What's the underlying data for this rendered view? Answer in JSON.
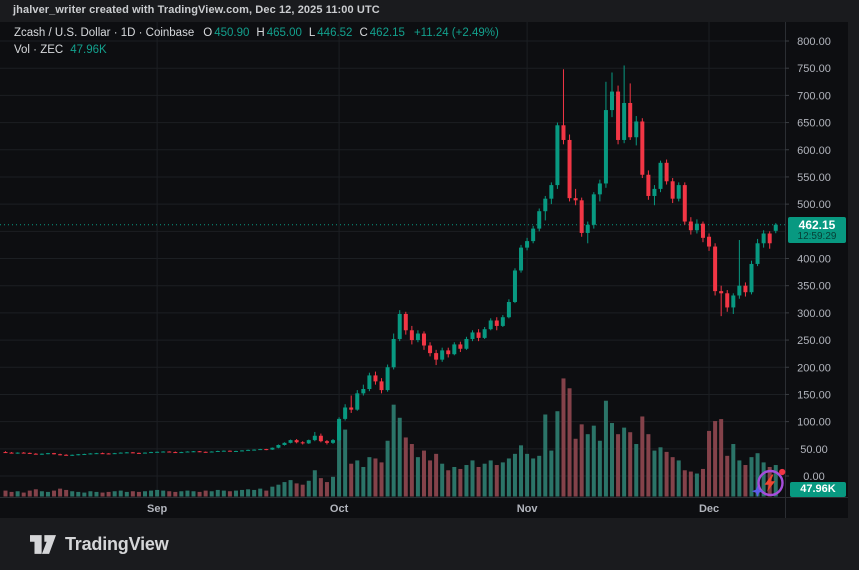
{
  "frame": {
    "attribution": "jhalver_writer created with TradingView.com, Dec 12, 2025 11:00 UTC",
    "brand": "TradingView"
  },
  "legend": {
    "title": "Zcash / U.S. Dollar · 1D · Coinbase",
    "ohlc": [
      {
        "k": "O",
        "v": "450.90"
      },
      {
        "k": "H",
        "v": "465.00"
      },
      {
        "k": "L",
        "v": "446.52"
      },
      {
        "k": "C",
        "v": "462.15"
      }
    ],
    "change": "+11.24 (+2.49%)",
    "volume_label": "Vol · ZEC",
    "volume_value": "47.96K"
  },
  "axes": {
    "price_badge": {
      "label": "462.15",
      "countdown": "12:59:29"
    },
    "volume_badge": "47.96K"
  },
  "colors": {
    "up": "#089981",
    "down": "#f23645",
    "vol_up": "#2b7468",
    "vol_down": "#84424a",
    "grid": "#1c1f23",
    "axis_border": "#2b2e33",
    "text_axis": "#b2b5bd",
    "text_primary": "#d7d9dc",
    "badge": "#089981",
    "bg_frame": "#1a1b1e",
    "bg_chart": "#0d0e11",
    "icon_ring": "#a64ddb",
    "icon_bolt": "#ee4630",
    "icon_star": "#5d5bea",
    "icon_dot": "#f23645"
  },
  "chart_data": {
    "type": "candlestick",
    "title": "Zcash / U.S. Dollar · 1D · Coinbase",
    "exchange": "Coinbase",
    "interval": "1D",
    "last_bar": {
      "open": 450.9,
      "high": 465.0,
      "low": 446.52,
      "close": 462.15,
      "change": "+11.24 (+2.49%)",
      "volume": "47.96K"
    },
    "current_price": {
      "value": 462.15,
      "label": "462.15",
      "countdown": "12:59:29"
    },
    "y_axis": {
      "min": 0,
      "max": 800,
      "step": 50,
      "ticks": [
        {
          "v": 800,
          "label": "800.00"
        },
        {
          "v": 750,
          "label": "750.00"
        },
        {
          "v": 700,
          "label": "700.00"
        },
        {
          "v": 650,
          "label": "650.00"
        },
        {
          "v": 600,
          "label": "600.00"
        },
        {
          "v": 550,
          "label": "550.00"
        },
        {
          "v": 500,
          "label": "500.00"
        },
        {
          "v": 400,
          "label": "400.00"
        },
        {
          "v": 350,
          "label": "350.00"
        },
        {
          "v": 300,
          "label": "300.00"
        },
        {
          "v": 250,
          "label": "250.00"
        },
        {
          "v": 200,
          "label": "200.00"
        },
        {
          "v": 150,
          "label": "150.00"
        },
        {
          "v": 100,
          "label": "100.00"
        },
        {
          "v": 50,
          "label": "50.00"
        },
        {
          "v": 0,
          "label": "0.00"
        }
      ]
    },
    "x_axis": {
      "months": [
        {
          "label": "Sep",
          "index": 25
        },
        {
          "label": "Oct",
          "index": 55
        },
        {
          "label": "Nov",
          "index": 86
        },
        {
          "label": "Dec",
          "index": 116
        }
      ]
    },
    "candles_format": [
      "open",
      "high",
      "low",
      "close",
      "volume_thousands"
    ],
    "candles": [
      [
        44,
        45.5,
        42.5,
        43,
        9
      ],
      [
        43,
        44,
        41.5,
        42,
        7
      ],
      [
        42,
        43.5,
        41,
        43,
        8
      ],
      [
        43,
        44,
        42,
        42.5,
        6
      ],
      [
        42.5,
        43,
        40.5,
        41,
        9
      ],
      [
        41,
        42,
        39.5,
        40,
        11
      ],
      [
        40,
        41.5,
        39,
        41,
        8
      ],
      [
        41,
        42.5,
        40,
        42,
        7
      ],
      [
        42,
        42.5,
        39.5,
        40,
        9
      ],
      [
        40,
        41,
        38,
        39,
        12
      ],
      [
        39,
        40,
        37.5,
        38,
        10
      ],
      [
        38,
        39.5,
        37,
        39,
        8
      ],
      [
        39,
        40.5,
        38,
        40,
        7
      ],
      [
        40,
        41,
        39,
        40.5,
        6
      ],
      [
        40.5,
        42,
        39.5,
        41.5,
        8
      ],
      [
        41.5,
        42.5,
        40.5,
        42,
        7
      ],
      [
        42,
        43,
        41,
        41.5,
        6
      ],
      [
        41.5,
        42,
        40,
        41,
        7
      ],
      [
        41,
        42.5,
        40.5,
        42,
        8
      ],
      [
        42,
        43.5,
        41.5,
        43,
        9
      ],
      [
        43,
        44,
        42,
        43.5,
        7
      ],
      [
        43.5,
        44,
        42,
        42.5,
        8
      ],
      [
        42.5,
        43,
        41,
        42,
        7
      ],
      [
        42,
        43.5,
        41.5,
        43,
        8
      ],
      [
        43,
        44.5,
        42.5,
        44,
        9
      ],
      [
        44,
        45,
        43,
        44.5,
        10
      ],
      [
        44.5,
        45.5,
        43.5,
        45,
        9
      ],
      [
        45,
        45.5,
        43.5,
        44,
        8
      ],
      [
        44,
        45,
        43,
        43.5,
        7
      ],
      [
        43.5,
        44.5,
        42.5,
        44,
        8
      ],
      [
        44,
        45.5,
        43.5,
        45,
        9
      ],
      [
        45,
        46,
        44,
        45.5,
        8
      ],
      [
        45.5,
        46,
        44,
        44.5,
        7
      ],
      [
        44.5,
        45,
        43,
        44,
        9
      ],
      [
        44,
        45.5,
        43.5,
        45,
        8
      ],
      [
        45,
        46.5,
        44.5,
        46,
        10
      ],
      [
        46,
        47,
        45,
        46.5,
        9
      ],
      [
        46.5,
        47,
        45,
        45.5,
        8
      ],
      [
        45.5,
        46.5,
        44.5,
        46,
        9
      ],
      [
        46,
        47.5,
        45.5,
        47,
        10
      ],
      [
        47,
        48.5,
        46.5,
        48,
        11
      ],
      [
        48,
        49,
        47,
        48.5,
        10
      ],
      [
        48.5,
        50,
        48,
        49.5,
        12
      ],
      [
        49.5,
        50,
        47.5,
        48.5,
        9
      ],
      [
        48.5,
        52.5,
        48,
        52,
        15
      ],
      [
        52,
        58,
        51,
        57,
        18
      ],
      [
        57,
        62,
        56,
        61,
        22
      ],
      [
        61,
        67,
        60,
        66,
        25
      ],
      [
        66,
        68,
        60,
        62,
        20
      ],
      [
        62,
        64,
        58,
        60,
        18
      ],
      [
        60,
        67,
        59,
        66,
        24
      ],
      [
        66,
        81,
        64,
        74,
        40
      ],
      [
        74,
        78,
        62,
        64,
        28
      ],
      [
        64,
        66,
        58,
        61,
        22
      ],
      [
        61,
        68,
        59,
        66,
        30
      ],
      [
        66,
        108,
        64,
        105,
        107
      ],
      [
        105,
        132,
        102,
        126,
        102
      ],
      [
        126,
        148,
        116,
        122,
        50
      ],
      [
        122,
        158,
        120,
        152,
        55
      ],
      [
        152,
        168,
        148,
        160,
        45
      ],
      [
        160,
        190,
        156,
        185,
        60
      ],
      [
        185,
        192,
        168,
        174,
        58
      ],
      [
        174,
        180,
        152,
        158,
        52
      ],
      [
        158,
        205,
        155,
        200,
        85
      ],
      [
        200,
        262,
        196,
        252,
        140
      ],
      [
        252,
        305,
        248,
        298,
        120
      ],
      [
        298,
        302,
        260,
        268,
        90
      ],
      [
        268,
        276,
        242,
        250,
        80
      ],
      [
        250,
        268,
        246,
        262,
        60
      ],
      [
        262,
        266,
        232,
        240,
        70
      ],
      [
        240,
        246,
        220,
        226,
        55
      ],
      [
        226,
        232,
        204,
        214,
        65
      ],
      [
        214,
        236,
        210,
        231,
        50
      ],
      [
        231,
        236,
        218,
        224,
        40
      ],
      [
        224,
        246,
        222,
        242,
        45
      ],
      [
        242,
        247,
        228,
        234,
        42
      ],
      [
        234,
        256,
        232,
        252,
        48
      ],
      [
        252,
        268,
        248,
        264,
        55
      ],
      [
        264,
        270,
        248,
        254,
        45
      ],
      [
        254,
        274,
        252,
        270,
        50
      ],
      [
        270,
        290,
        268,
        286,
        55
      ],
      [
        286,
        292,
        268,
        276,
        48
      ],
      [
        276,
        296,
        274,
        292,
        52
      ],
      [
        292,
        325,
        290,
        320,
        58
      ],
      [
        320,
        382,
        318,
        378,
        65
      ],
      [
        378,
        425,
        374,
        420,
        78
      ],
      [
        420,
        438,
        415,
        432,
        65
      ],
      [
        432,
        460,
        428,
        455,
        58
      ],
      [
        455,
        492,
        450,
        487,
        62
      ],
      [
        487,
        515,
        470,
        510,
        125
      ],
      [
        510,
        540,
        500,
        535,
        70
      ],
      [
        535,
        650,
        528,
        645,
        130
      ],
      [
        645,
        748,
        610,
        618,
        180
      ],
      [
        618,
        628,
        505,
        511,
        165
      ],
      [
        511,
        528,
        498,
        507,
        88
      ],
      [
        507,
        512,
        440,
        447,
        110
      ],
      [
        447,
        468,
        428,
        462,
        95
      ],
      [
        462,
        522,
        455,
        518,
        108
      ],
      [
        518,
        545,
        505,
        538,
        85
      ],
      [
        538,
        725,
        530,
        673,
        146
      ],
      [
        673,
        742,
        660,
        707,
        112
      ],
      [
        707,
        718,
        610,
        618,
        95
      ],
      [
        618,
        755,
        612,
        686,
        105
      ],
      [
        686,
        722,
        618,
        623,
        98
      ],
      [
        623,
        662,
        608,
        652,
        80
      ],
      [
        652,
        658,
        548,
        554,
        122
      ],
      [
        554,
        562,
        508,
        515,
        95
      ],
      [
        515,
        535,
        498,
        528,
        70
      ],
      [
        528,
        580,
        522,
        576,
        75
      ],
      [
        576,
        582,
        536,
        542,
        68
      ],
      [
        542,
        548,
        502,
        510,
        60
      ],
      [
        510,
        540,
        505,
        535,
        55
      ],
      [
        535,
        540,
        462,
        468,
        40
      ],
      [
        468,
        476,
        444,
        452,
        38
      ],
      [
        452,
        472,
        446,
        464,
        35
      ],
      [
        464,
        468,
        430,
        438,
        42
      ],
      [
        440,
        446,
        414,
        422,
        100
      ],
      [
        422,
        428,
        332,
        340,
        115
      ],
      [
        340,
        350,
        294,
        336,
        118
      ],
      [
        336,
        342,
        302,
        310,
        62
      ],
      [
        310,
        336,
        298,
        332,
        80
      ],
      [
        332,
        434,
        326,
        350,
        55
      ],
      [
        350,
        356,
        330,
        338,
        48
      ],
      [
        338,
        396,
        334,
        390,
        60
      ],
      [
        390,
        436,
        386,
        428,
        66
      ],
      [
        428,
        452,
        420,
        446,
        52
      ],
      [
        446,
        450,
        418,
        428,
        45
      ],
      [
        450.9,
        465,
        446.52,
        462.15,
        47.96
      ]
    ]
  }
}
